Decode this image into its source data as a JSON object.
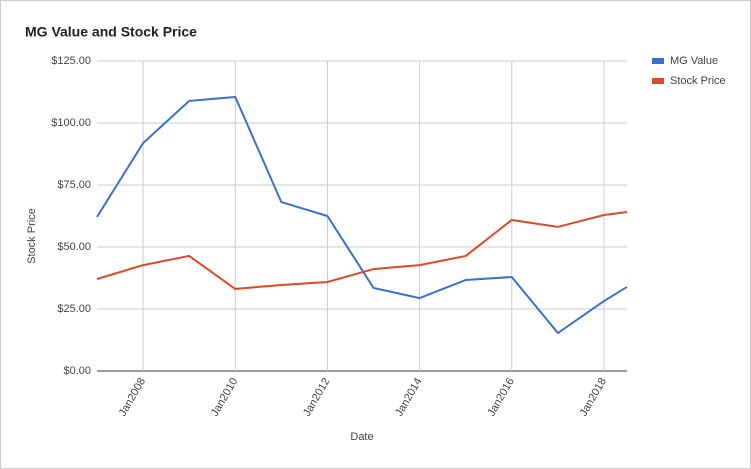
{
  "chart_data": {
    "type": "line",
    "title": "MG Value and Stock Price",
    "x_label": "Date",
    "y_label": "Stock Price",
    "x": [
      2007,
      2008,
      2009,
      2010,
      2011,
      2012,
      2013,
      2014,
      2015,
      2016,
      2017,
      2018,
      2018.5
    ],
    "series": [
      {
        "name": "MG Value",
        "color": "#3c6fd0",
        "values": [
          62.1,
          91.9,
          108.9,
          110.5,
          68.1,
          62.5,
          33.5,
          29.4,
          36.7,
          37.9,
          15.3,
          28.2,
          33.9
        ]
      },
      {
        "name": "Stock Price",
        "color": "#dc4a26",
        "values": [
          37.1,
          42.7,
          46.4,
          33.1,
          34.7,
          35.9,
          41.1,
          42.7,
          46.4,
          60.9,
          58.1,
          62.9,
          64.1
        ]
      }
    ],
    "xlim": [
      2007,
      2018.5
    ],
    "xticks": [
      {
        "value": 2008,
        "label": "Jan2008"
      },
      {
        "value": 2010,
        "label": "Jan2010"
      },
      {
        "value": 2012,
        "label": "Jan2012"
      },
      {
        "value": 2014,
        "label": "Jan2014"
      },
      {
        "value": 2016,
        "label": "Jan2016"
      },
      {
        "value": 2018,
        "label": "Jan2018"
      }
    ],
    "ylim": [
      0,
      125
    ],
    "yticks": [
      {
        "value": 0,
        "label": "$0.00"
      },
      {
        "value": 25,
        "label": "$25.00"
      },
      {
        "value": 50,
        "label": "$50.00"
      },
      {
        "value": 75,
        "label": "$75.00"
      },
      {
        "value": 100,
        "label": "$100.00"
      },
      {
        "value": 125,
        "label": "$125.00"
      }
    ],
    "grid": true,
    "legend": "right"
  }
}
